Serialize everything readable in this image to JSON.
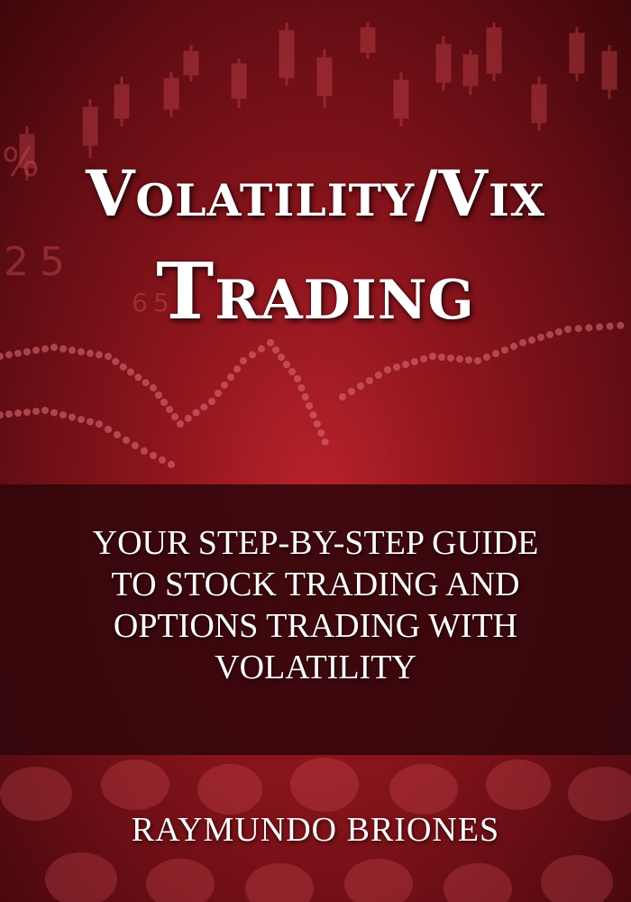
{
  "cover": {
    "title_line_1": "Volatility/Vix",
    "title_line_2": "Trading",
    "subtitle_lines": [
      "YOUR STEP-BY-STEP GUIDE",
      "TO STOCK TRADING AND",
      "OPTIONS TRADING WITH",
      "VOLATILITY"
    ],
    "author": "RAYMUNDO BRIONES",
    "background_digits": [
      "%",
      "2",
      "5",
      "6",
      "5"
    ]
  },
  "colors": {
    "background_center": "#b8222b",
    "background_edge": "#3e070b",
    "band": "#30060a",
    "text": "#ffffff"
  }
}
